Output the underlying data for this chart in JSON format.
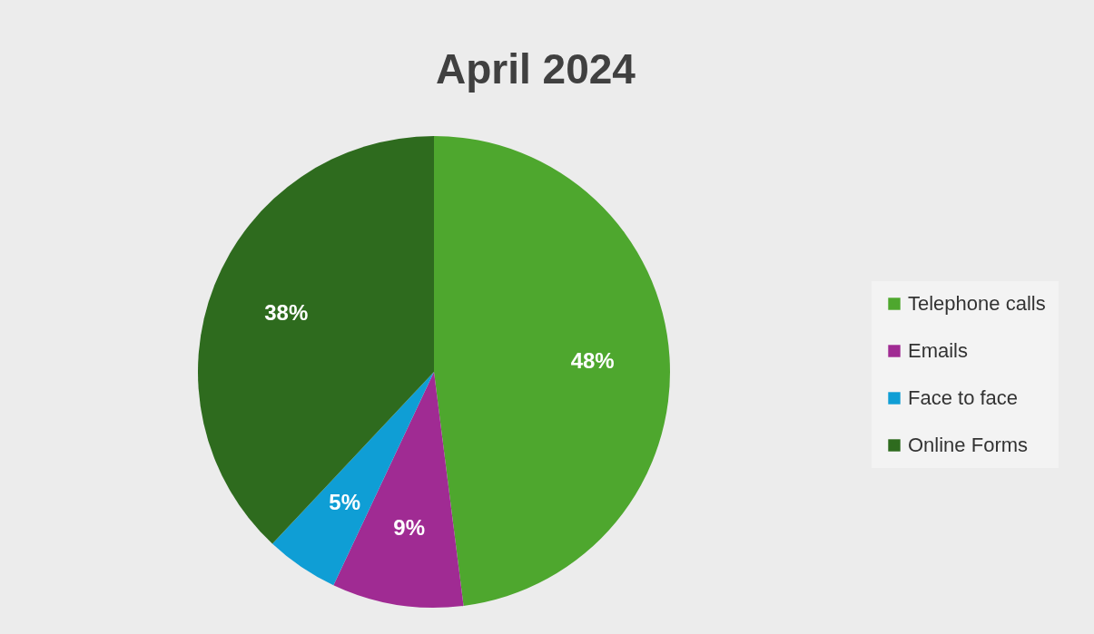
{
  "chart_data": {
    "type": "pie",
    "title": "April 2024",
    "categories": [
      "Telephone calls",
      "Emails",
      "Face to face",
      "Online Forms"
    ],
    "values": [
      48,
      9,
      5,
      38
    ],
    "value_labels": [
      "48%",
      "9%",
      "5%",
      "38%"
    ],
    "colors": [
      "#4ea72e",
      "#a02b93",
      "#0f9ed5",
      "#2e6b1e"
    ],
    "legend": "right"
  }
}
